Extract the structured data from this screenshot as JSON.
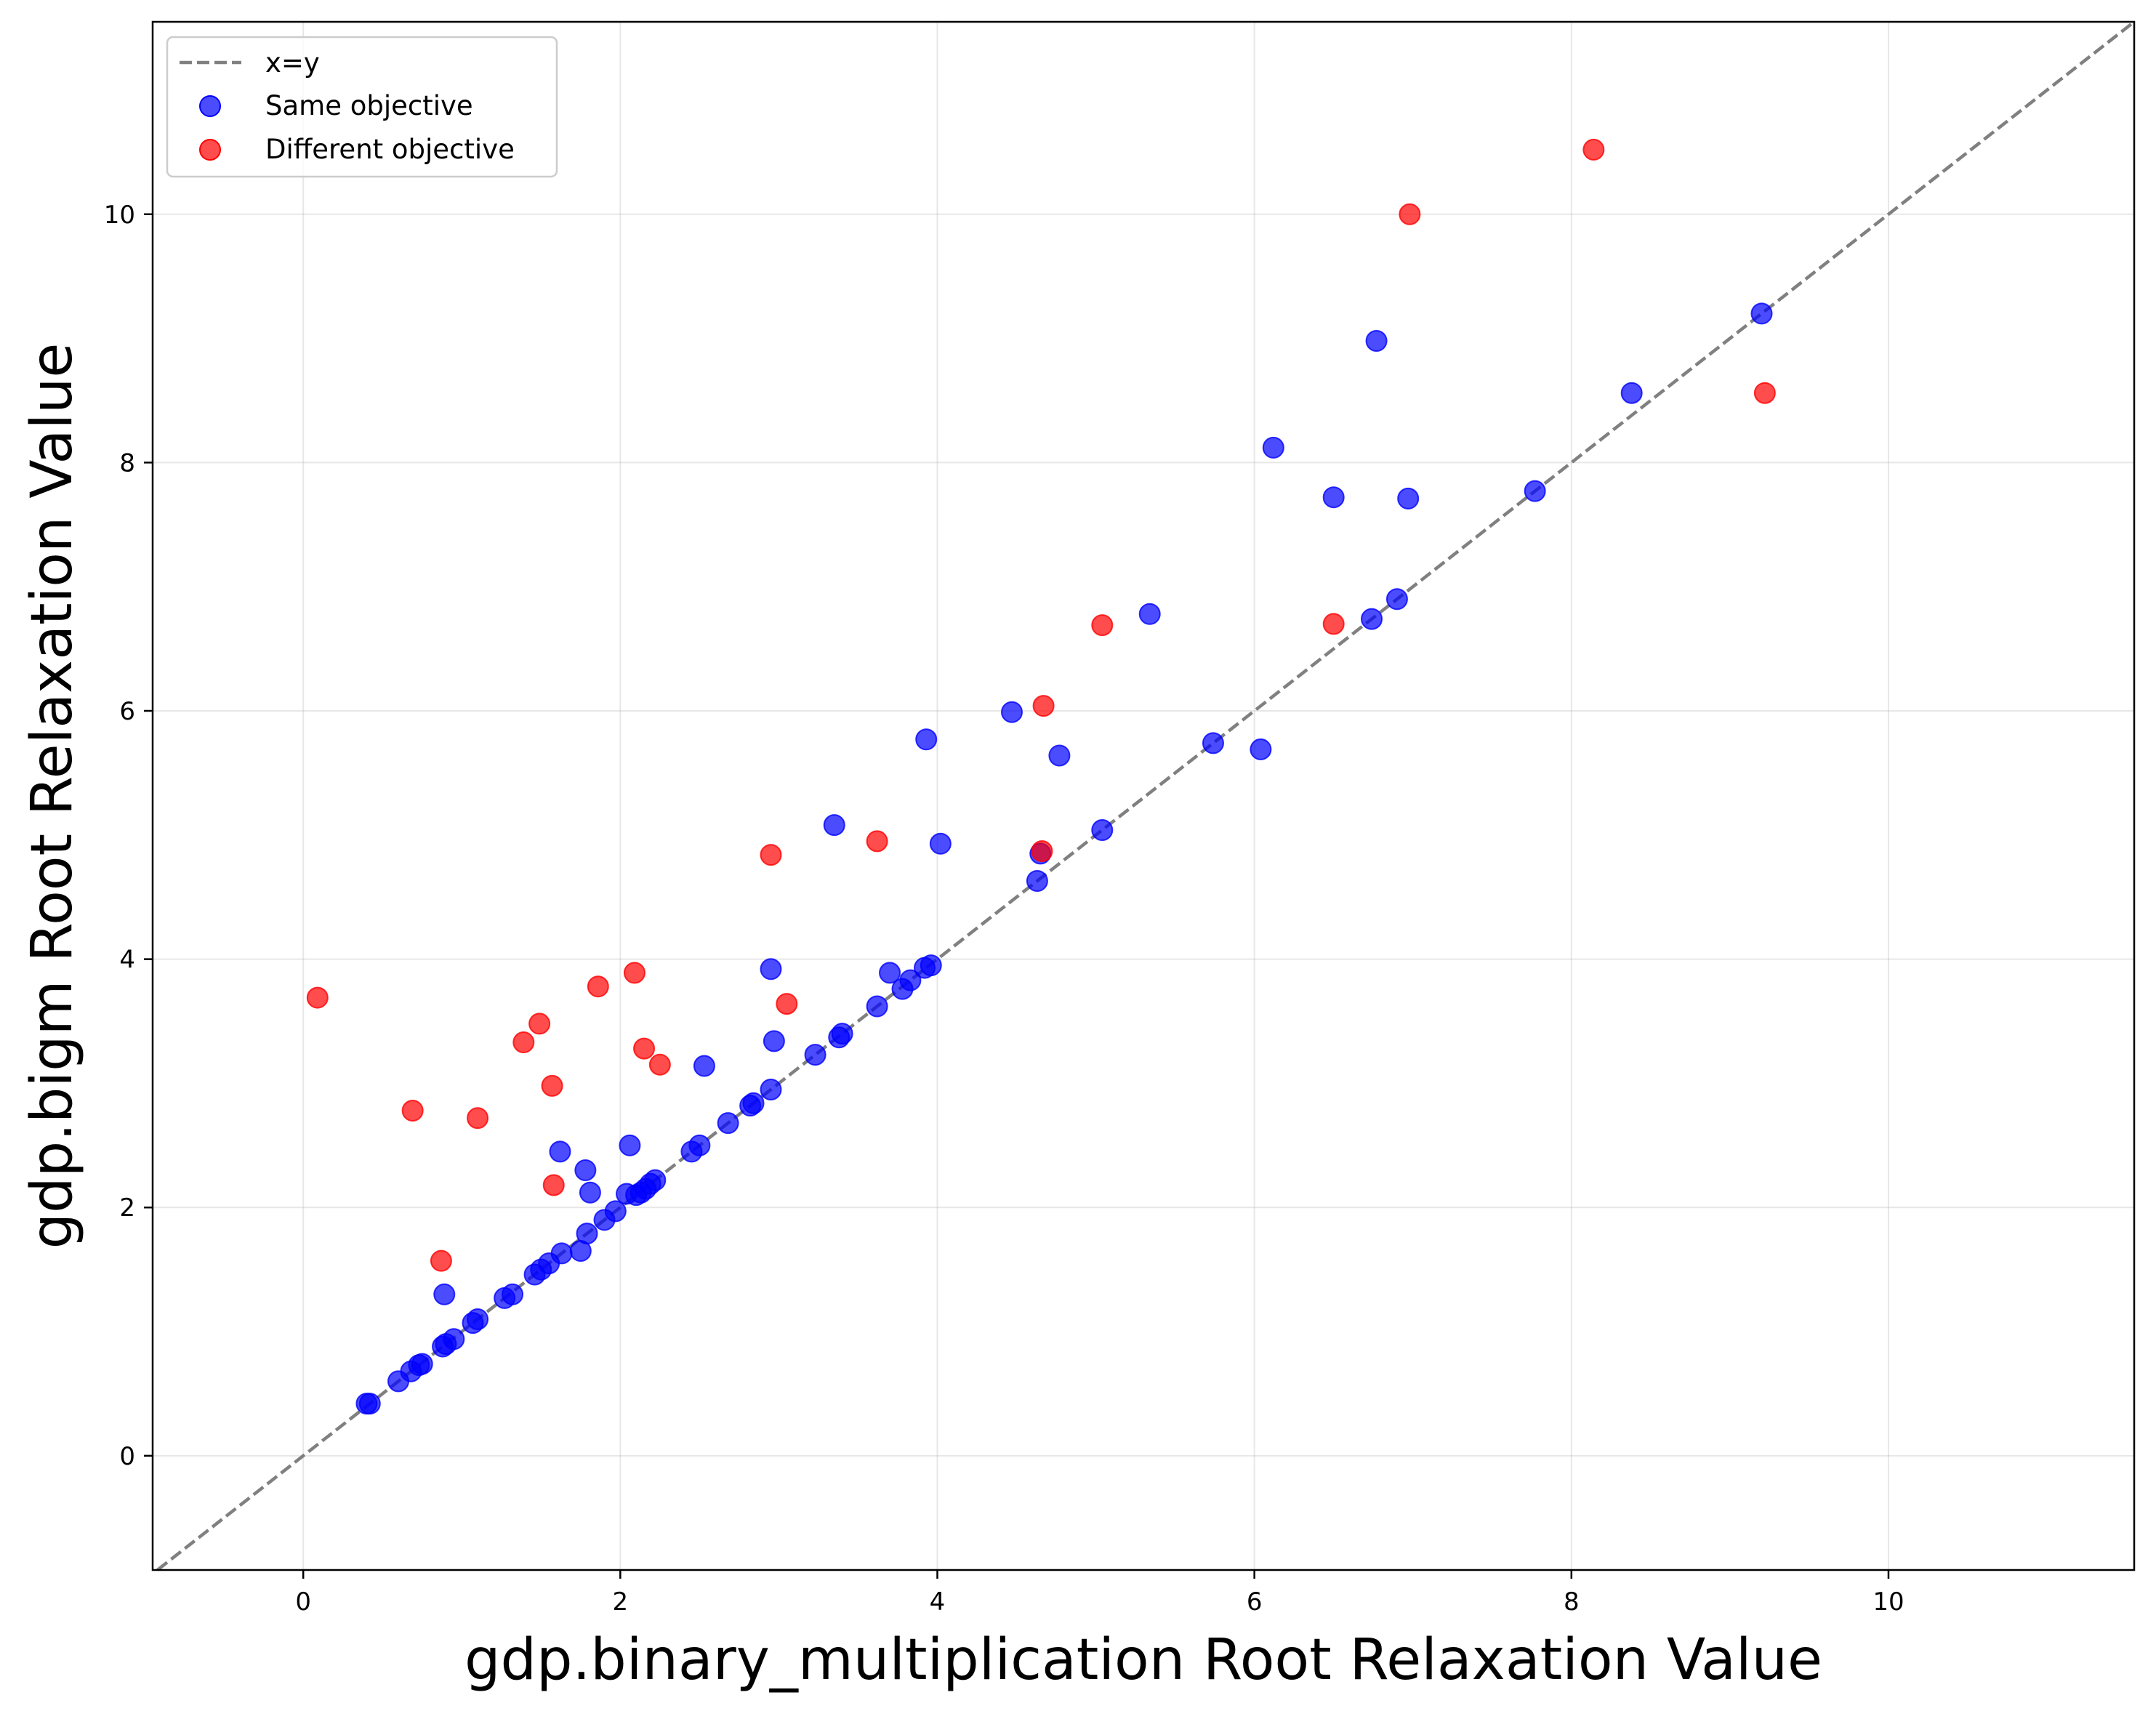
{
  "chart_data": {
    "type": "scatter",
    "title": "",
    "xlabel": "gdp.binary_multiplication Root Relaxation Value",
    "ylabel": "gdp.bigm Root Relaxation Value",
    "xlim": [
      -0.95,
      11.55
    ],
    "ylim": [
      -0.92,
      11.55
    ],
    "xticks": [
      0,
      2,
      4,
      6,
      8,
      10
    ],
    "yticks": [
      0,
      2,
      4,
      6,
      8,
      10
    ],
    "xtick_labels": [
      "0",
      "2",
      "4",
      "6",
      "8",
      "10"
    ],
    "ytick_labels": [
      "0",
      "2",
      "4",
      "6",
      "8",
      "10"
    ],
    "grid": true,
    "legend_position": "top-left",
    "reference_line": {
      "name": "x=y",
      "color": "#808080",
      "style": "dashed"
    },
    "series": [
      {
        "name": "Same objective",
        "color": "#0000ff",
        "points": [
          [
            0.4,
            0.42
          ],
          [
            0.42,
            0.42
          ],
          [
            0.6,
            0.6
          ],
          [
            0.68,
            0.68
          ],
          [
            0.73,
            0.73
          ],
          [
            0.75,
            0.74
          ],
          [
            0.88,
            0.88
          ],
          [
            0.9,
            0.9
          ],
          [
            0.95,
            0.94
          ],
          [
            1.07,
            1.07
          ],
          [
            1.1,
            1.1
          ],
          [
            1.27,
            1.27
          ],
          [
            1.32,
            1.3
          ],
          [
            1.46,
            1.46
          ],
          [
            1.5,
            1.5
          ],
          [
            1.55,
            1.55
          ],
          [
            1.63,
            1.63
          ],
          [
            1.75,
            1.65
          ],
          [
            1.79,
            1.79
          ],
          [
            1.9,
            1.9
          ],
          [
            1.97,
            1.97
          ],
          [
            2.04,
            2.11
          ],
          [
            2.1,
            2.1
          ],
          [
            2.13,
            2.12
          ],
          [
            2.16,
            2.15
          ],
          [
            2.19,
            2.19
          ],
          [
            2.22,
            2.22
          ],
          [
            2.45,
            2.45
          ],
          [
            2.5,
            2.5
          ],
          [
            2.68,
            2.68
          ],
          [
            2.82,
            2.82
          ],
          [
            2.84,
            2.84
          ],
          [
            2.95,
            2.95
          ],
          [
            3.23,
            3.23
          ],
          [
            3.38,
            3.37
          ],
          [
            3.4,
            3.4
          ],
          [
            3.62,
            3.62
          ],
          [
            3.78,
            3.76
          ],
          [
            3.83,
            3.83
          ],
          [
            3.92,
            3.93
          ],
          [
            3.96,
            3.95
          ],
          [
            4.63,
            4.63
          ],
          [
            5.04,
            5.04
          ],
          [
            5.74,
            5.74
          ],
          [
            6.74,
            6.74
          ],
          [
            6.9,
            6.9
          ],
          [
            7.77,
            7.77
          ],
          [
            9.2,
            9.2
          ],
          [
            0.89,
            1.3
          ],
          [
            1.62,
            2.45
          ],
          [
            1.78,
            2.3
          ],
          [
            1.81,
            2.12
          ],
          [
            2.06,
            2.5
          ],
          [
            2.53,
            3.14
          ],
          [
            2.95,
            3.92
          ],
          [
            2.97,
            3.34
          ],
          [
            3.35,
            5.08
          ],
          [
            3.7,
            3.89
          ],
          [
            3.93,
            5.77
          ],
          [
            4.02,
            4.93
          ],
          [
            4.47,
            5.99
          ],
          [
            4.65,
            4.85
          ],
          [
            4.77,
            5.64
          ],
          [
            5.34,
            6.78
          ],
          [
            6.04,
            5.69
          ],
          [
            6.12,
            8.12
          ],
          [
            6.5,
            7.72
          ],
          [
            6.77,
            8.98
          ],
          [
            6.97,
            7.71
          ],
          [
            8.38,
            8.56
          ]
        ]
      },
      {
        "name": "Different objective",
        "color": "#ff0000",
        "points": [
          [
            0.09,
            3.69
          ],
          [
            0.69,
            2.78
          ],
          [
            0.87,
            1.57
          ],
          [
            1.1,
            2.72
          ],
          [
            1.39,
            3.33
          ],
          [
            1.49,
            3.48
          ],
          [
            1.57,
            2.98
          ],
          [
            1.58,
            2.18
          ],
          [
            1.86,
            3.78
          ],
          [
            2.09,
            3.89
          ],
          [
            2.15,
            3.28
          ],
          [
            2.25,
            3.15
          ],
          [
            2.95,
            4.84
          ],
          [
            3.05,
            3.64
          ],
          [
            3.62,
            4.95
          ],
          [
            4.66,
            4.87
          ],
          [
            4.67,
            6.04
          ],
          [
            5.04,
            6.69
          ],
          [
            6.5,
            6.7
          ],
          [
            6.98,
            10.0
          ],
          [
            8.14,
            10.52
          ],
          [
            9.22,
            8.56
          ]
        ]
      }
    ]
  }
}
